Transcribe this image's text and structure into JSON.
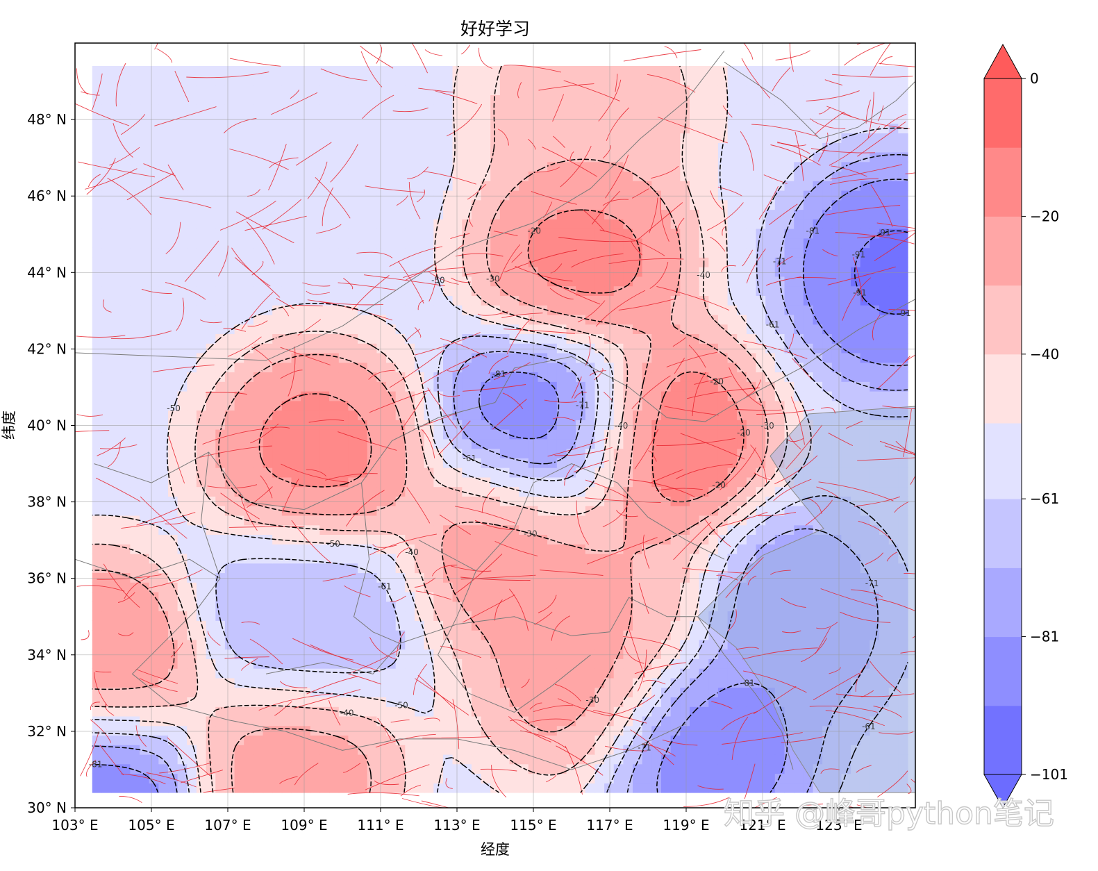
{
  "chart_data": {
    "type": "heatmap",
    "title": "好好学习",
    "xlabel": "经度",
    "ylabel": "纬度",
    "xlim": [
      103,
      125
    ],
    "ylim": [
      30,
      50
    ],
    "x_ticks": [
      103,
      105,
      107,
      109,
      111,
      113,
      115,
      117,
      119,
      121,
      123
    ],
    "x_tick_labels": [
      "103° E",
      "105° E",
      "107° E",
      "109° E",
      "111° E",
      "113° E",
      "115° E",
      "117° E",
      "119° E",
      "121° E",
      "123° E"
    ],
    "y_ticks": [
      30,
      32,
      34,
      36,
      38,
      40,
      42,
      44,
      46,
      48
    ],
    "y_tick_labels": [
      "30° N",
      "32° N",
      "34° N",
      "36° N",
      "38° N",
      "40° N",
      "42° N",
      "44° N",
      "46° N",
      "48° N"
    ],
    "grid": true,
    "colormap": "bwr",
    "colorbar": {
      "min": -101,
      "max": 0,
      "ticks": [
        0,
        -20,
        -40,
        -61,
        -81,
        -101
      ],
      "tick_labels": [
        "0",
        "−20",
        "−40",
        "−61",
        "−81",
        "−101"
      ],
      "extend": "both",
      "levels": [
        -101,
        -91,
        -81,
        -71,
        -61,
        -50,
        -40,
        -30,
        -20,
        -10,
        0
      ]
    },
    "contour_level_labels": [
      "-61",
      "-30",
      "-40",
      "-20",
      "-10",
      "-50",
      "-71",
      "-81",
      "-91",
      "-101"
    ],
    "anomaly_centers": [
      {
        "lon": 109.3,
        "lat": 39.3,
        "value": -12
      },
      {
        "lon": 118.4,
        "lat": 39.6,
        "value": -5
      },
      {
        "lon": 116.3,
        "lat": 44.4,
        "value": -12
      },
      {
        "lon": 116.5,
        "lat": 48.5,
        "value": -30
      },
      {
        "lon": 114.5,
        "lat": 36.8,
        "value": -20
      },
      {
        "lon": 103.6,
        "lat": 33.8,
        "value": -15
      },
      {
        "lon": 108.7,
        "lat": 30.9,
        "value": -20
      },
      {
        "lon": 116.2,
        "lat": 33.5,
        "value": -22
      },
      {
        "lon": 117.5,
        "lat": 35.5,
        "value": -28
      },
      {
        "lon": 109.0,
        "lat": 35.0,
        "value": -72
      },
      {
        "lon": 115.5,
        "lat": 40.0,
        "value": -95
      },
      {
        "lon": 124.5,
        "lat": 44.0,
        "value": -97
      },
      {
        "lon": 119.5,
        "lat": 31.7,
        "value": -92
      },
      {
        "lon": 103.5,
        "lat": 30.5,
        "value": -95
      },
      {
        "lon": 121.5,
        "lat": 35.0,
        "value": -82
      }
    ],
    "overlays": [
      "coastline",
      "province boundaries",
      "fault lines"
    ]
  },
  "watermark": "知乎 @峰哥python笔记"
}
